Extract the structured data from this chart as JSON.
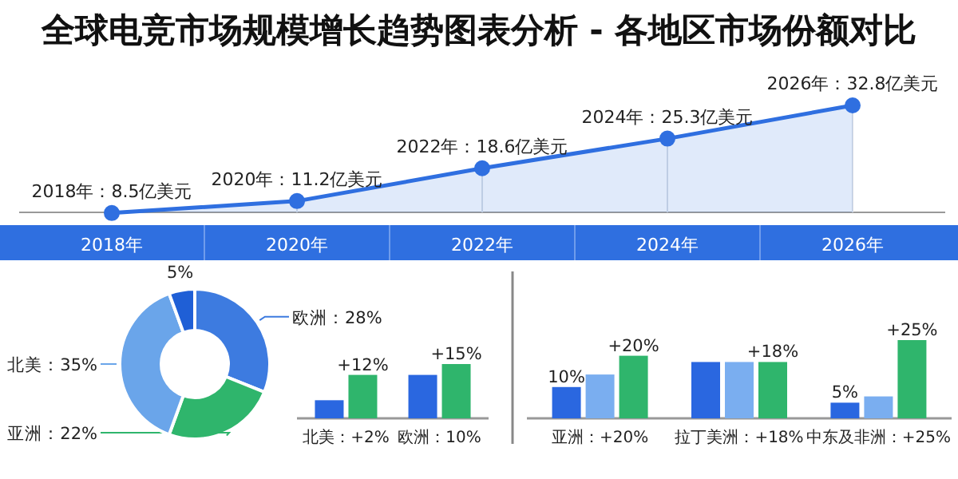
{
  "chart_data": [
    {
      "type": "area",
      "title": "全球电竞市场规模增长趋势图表分析 - 各地区市场份额对比",
      "categories": [
        "2018年",
        "2020年",
        "2022年",
        "2024年",
        "2026年"
      ],
      "series": [
        {
          "color": "#2f6fe0",
          "values": [
            8.5,
            11.2,
            18.6,
            25.3,
            32.8
          ],
          "value_labels": [
            "2018年：8.5亿美元",
            "2020年：11.2亿美元",
            "2022年：18.6亿美元",
            "2024年：25.3亿美元",
            "2026年：32.8亿美元"
          ]
        }
      ],
      "marker": "circle"
    },
    {
      "type": "donut",
      "categories": [
        "欧洲：28%",
        "亚洲：22%",
        "北美：35%",
        "5%"
      ],
      "values": [
        28,
        22,
        35,
        5
      ],
      "colors": [
        "#3d7be0",
        "#2fb56c",
        "#6aa5ea",
        "#1f5fd6"
      ]
    },
    {
      "type": "bar",
      "categories": [
        "北美：+2%",
        "欧洲：10%"
      ],
      "series": [
        {
          "color": "#2a67e0",
          "values": [
            5,
            12
          ]
        },
        {
          "color": "#2fb56c",
          "values": [
            12,
            15
          ],
          "value_labels": [
            "+12%",
            "+15%"
          ]
        }
      ]
    },
    {
      "type": "bar",
      "categories": [
        "亚洲：+20%",
        "拉丁美洲：+18%",
        "中东及非洲：+25%"
      ],
      "series": [
        {
          "color": "#2a67e0",
          "values": [
            10,
            18,
            5
          ],
          "value_labels": [
            "10%",
            null,
            "5%"
          ]
        },
        {
          "color": "#7aaef0",
          "values": [
            14,
            18,
            7
          ]
        },
        {
          "color": "#2fb56c",
          "values": [
            20,
            18,
            25
          ],
          "value_labels": [
            "+20%",
            "+18%",
            "+25%"
          ]
        }
      ]
    }
  ]
}
